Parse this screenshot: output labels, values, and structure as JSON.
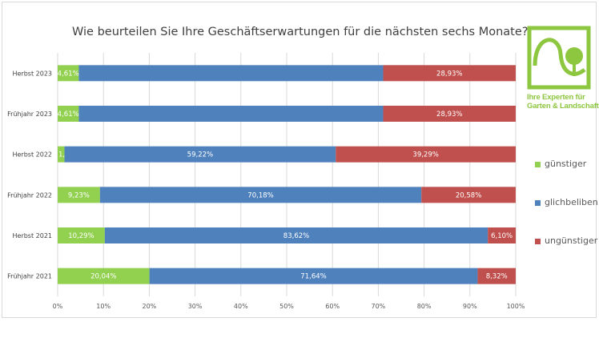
{
  "chart_data": {
    "type": "bar",
    "orientation": "horizontal",
    "stacked": "percent",
    "title": "Wie beurteilen Sie Ihre Geschäftserwartungen für die nächsten sechs Monate?",
    "categories": [
      "Herbst 2023",
      "Frühjahr 2023",
      "Herbst 2022",
      "Frühjahr 2022",
      "Herbst 2021",
      "Frühjahr 2021"
    ],
    "series": [
      {
        "name": "günstiger",
        "color": "#92d050",
        "values": [
          4.61,
          4.61,
          1.49,
          9.23,
          10.29,
          20.04
        ],
        "labels": [
          "4,61%",
          "4,61%",
          "1,49%",
          "9,23%",
          "10,29%",
          "20,04%"
        ]
      },
      {
        "name": "glichbeliben",
        "color": "#4f81bd",
        "values": [
          66.46,
          66.46,
          59.22,
          70.18,
          83.62,
          71.64
        ],
        "labels": [
          "",
          "",
          "59,22%",
          "70,18%",
          "83,62%",
          "71,64%"
        ]
      },
      {
        "name": "ungünstiger",
        "color": "#c0504d",
        "values": [
          28.93,
          28.93,
          39.29,
          20.58,
          6.1,
          8.32
        ],
        "labels": [
          "28,93%",
          "28,93%",
          "39,29%",
          "20,58%",
          "6,10%",
          "8,32%"
        ]
      }
    ],
    "xlim": [
      0,
      100
    ],
    "xticks": [
      "0%",
      "10%",
      "20%",
      "30%",
      "40%",
      "50%",
      "60%",
      "70%",
      "80%",
      "90%",
      "100%"
    ],
    "grid": true,
    "legend_position": "right"
  },
  "logo": {
    "text_line1": "Ihre Experten für",
    "text_line2": "Garten & Landschaft",
    "color": "#8dc63f"
  }
}
